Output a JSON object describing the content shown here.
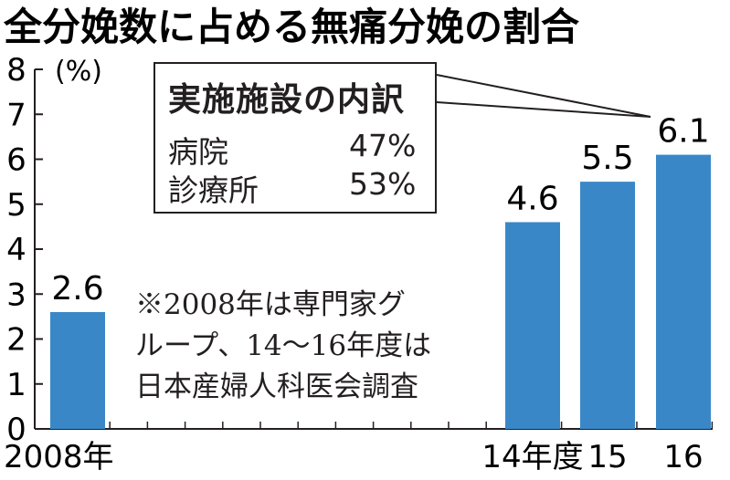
{
  "chart_data": {
    "type": "bar",
    "title": "全分娩数に占める無痛分娩の割合",
    "unit": "(%)",
    "categories": [
      "2008年",
      "14年度",
      "15",
      "16"
    ],
    "values": [
      2.6,
      4.6,
      5.5,
      6.1
    ],
    "data_labels": [
      "2.6",
      "4.6",
      "5.5",
      "6.1"
    ],
    "ylim": [
      0,
      8
    ],
    "yticks": [
      "0",
      "1",
      "2",
      "3",
      "4",
      "5",
      "6",
      "7",
      "8"
    ],
    "bar_color": "#3a87c8",
    "grid": false,
    "legend": "none"
  },
  "callout": {
    "title": "実施施設の内訳",
    "rows": [
      {
        "label": "病院",
        "value": "47%"
      },
      {
        "label": "診療所",
        "value": "53%"
      }
    ]
  },
  "footnote": {
    "lines": [
      "※2008年は専門家グ",
      "ループ、14～16年度は",
      "日本産婦人科医会調査"
    ]
  }
}
